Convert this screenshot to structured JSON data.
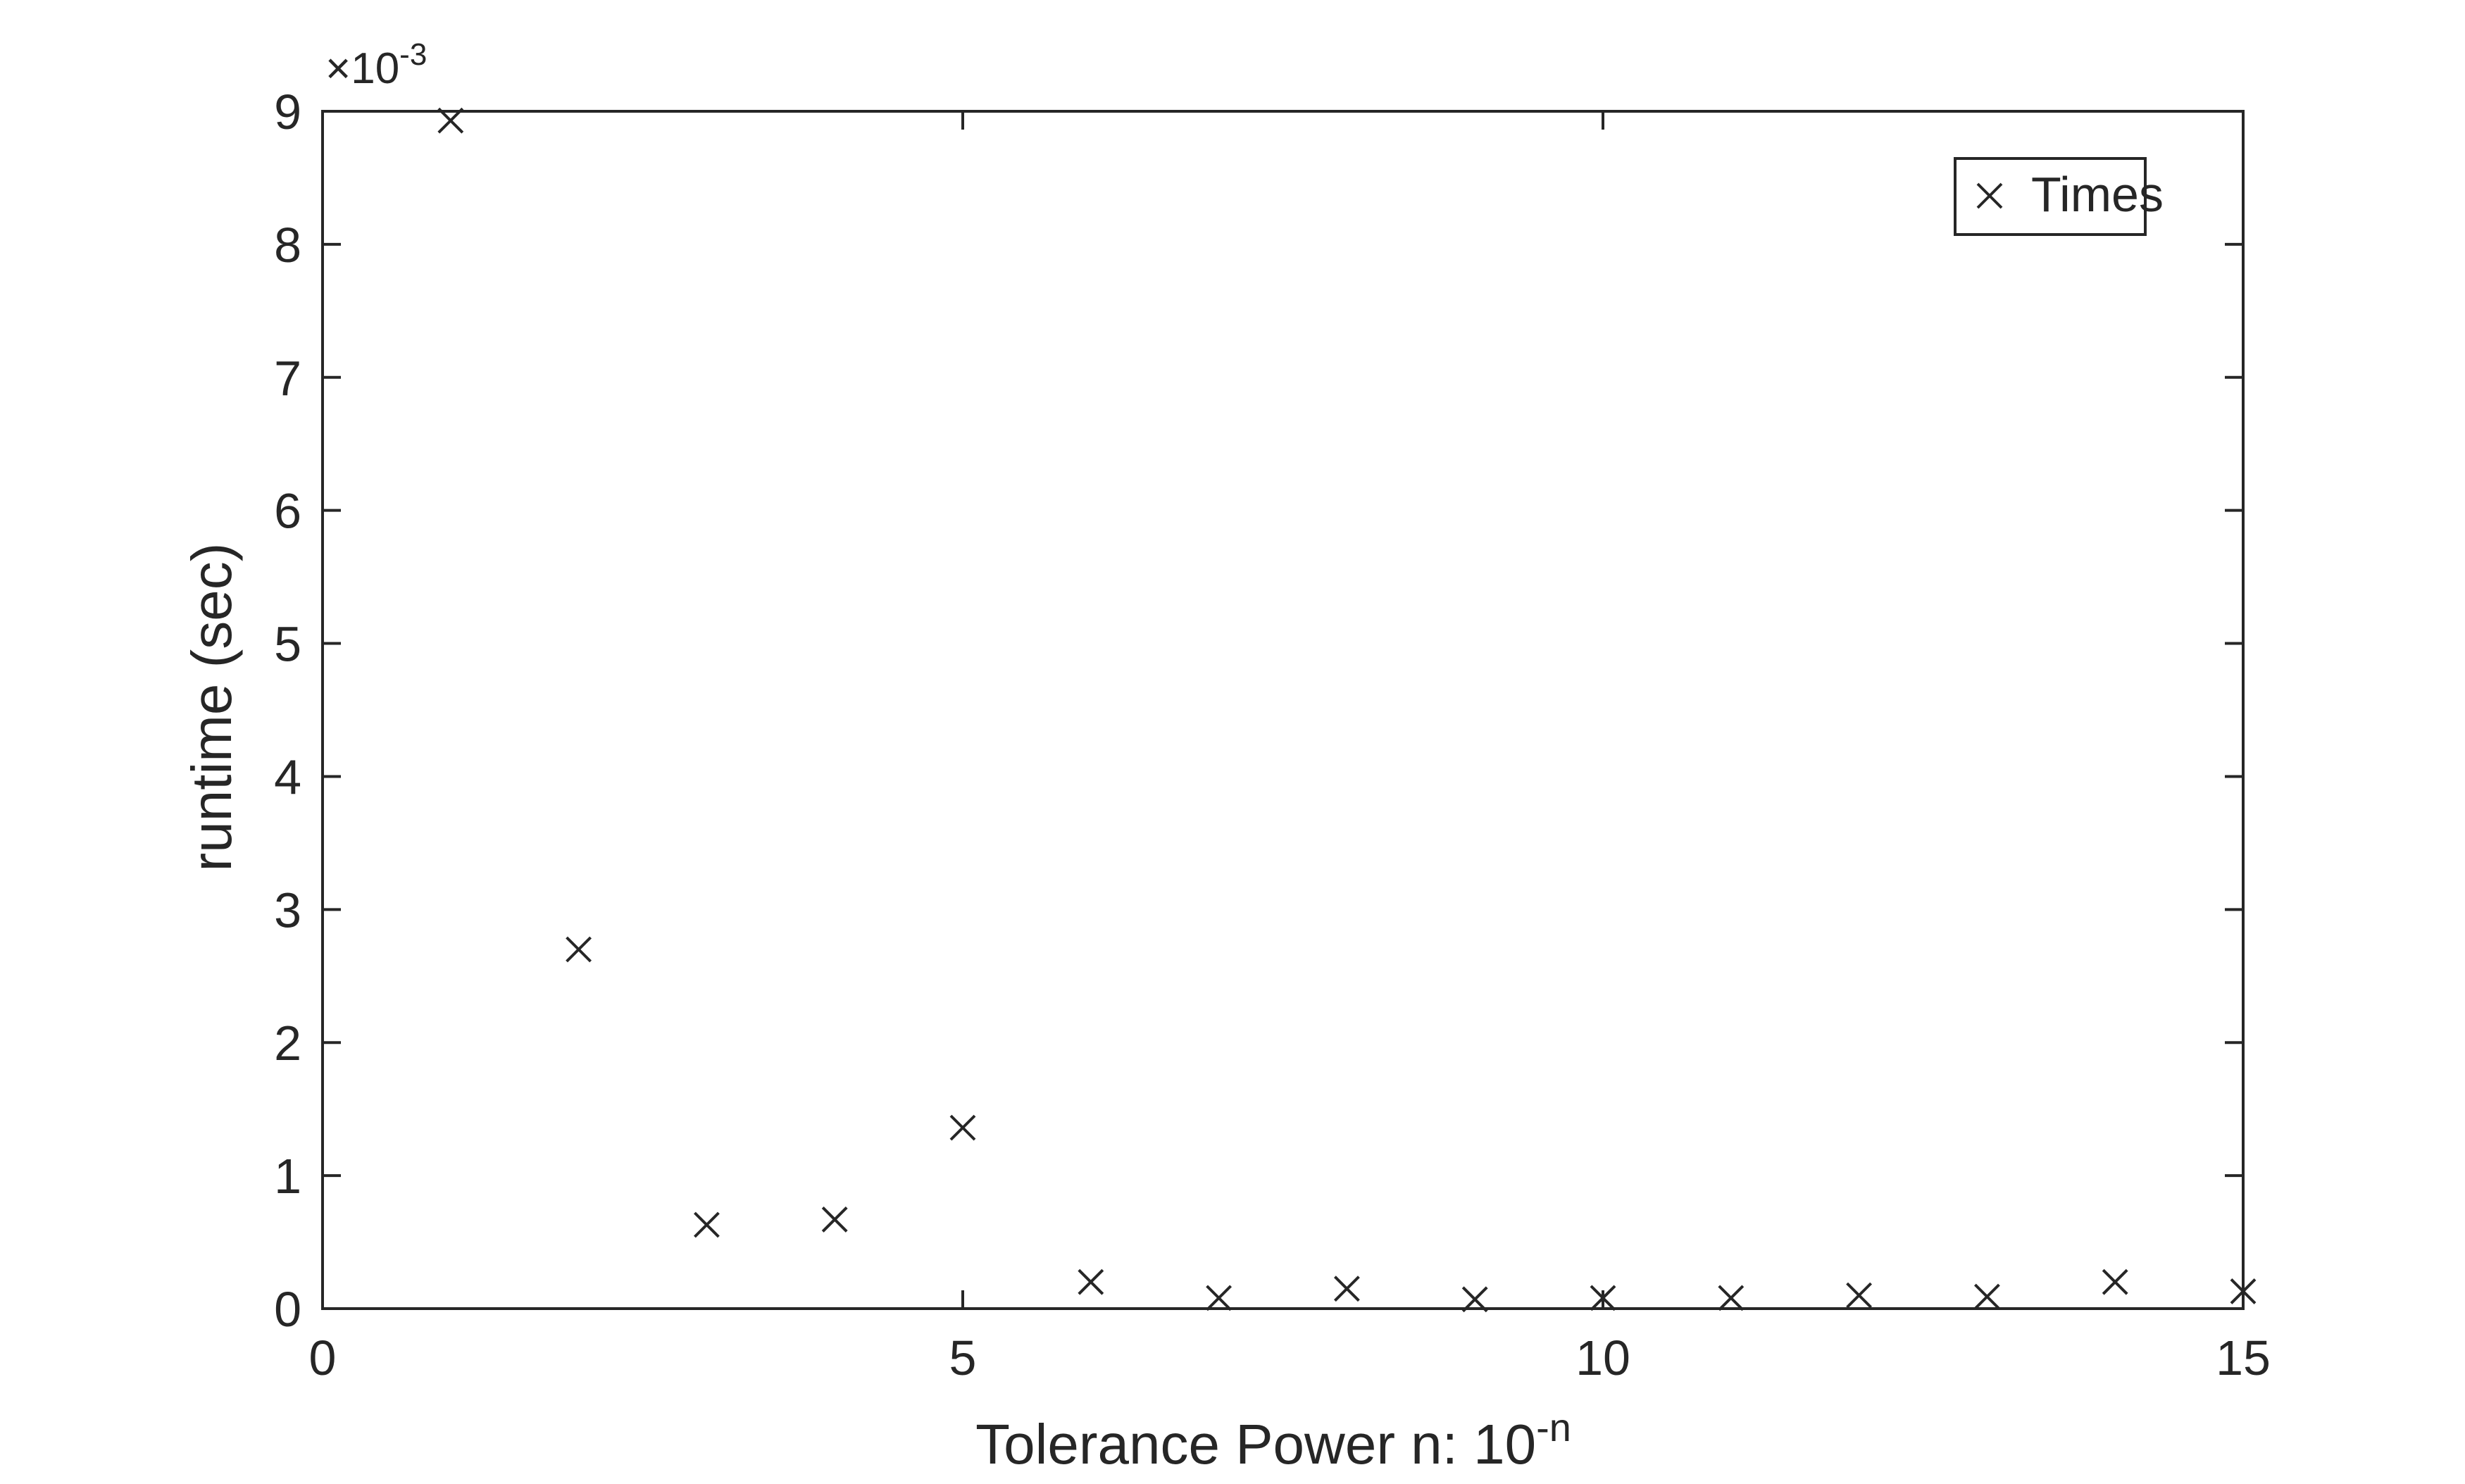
{
  "chart_data": {
    "type": "scatter",
    "title": "",
    "xlabel": "Tolerance  Power  n:  10",
    "xlabel_superscript": "-n",
    "ylabel": "runtime (sec)",
    "y_exponent_prefix": "×10",
    "y_exponent_power": "-3",
    "xlim": [
      0,
      15
    ],
    "ylim": [
      0,
      9
    ],
    "x_ticks": [
      0,
      5,
      10,
      15
    ],
    "x_tick_labels": [
      "0",
      "5",
      "10",
      "15"
    ],
    "y_ticks": [
      0,
      1,
      2,
      3,
      4,
      5,
      6,
      7,
      8,
      9
    ],
    "y_tick_labels": [
      "0",
      "1",
      "2",
      "3",
      "4",
      "5",
      "6",
      "7",
      "8",
      "9"
    ],
    "y_scale_factor": 0.001,
    "grid": false,
    "legend": {
      "position": "top-right",
      "entries": [
        "Times"
      ]
    },
    "marker": "x",
    "color": "#262626",
    "series": [
      {
        "name": "Times",
        "x": [
          1,
          2,
          3,
          4,
          5,
          6,
          7,
          8,
          9,
          10,
          11,
          12,
          13,
          14,
          15
        ],
        "y": [
          8.93,
          2.7,
          0.63,
          0.67,
          1.36,
          0.2,
          0.08,
          0.15,
          0.07,
          0.08,
          0.08,
          0.1,
          0.09,
          0.2,
          0.13
        ]
      }
    ]
  }
}
